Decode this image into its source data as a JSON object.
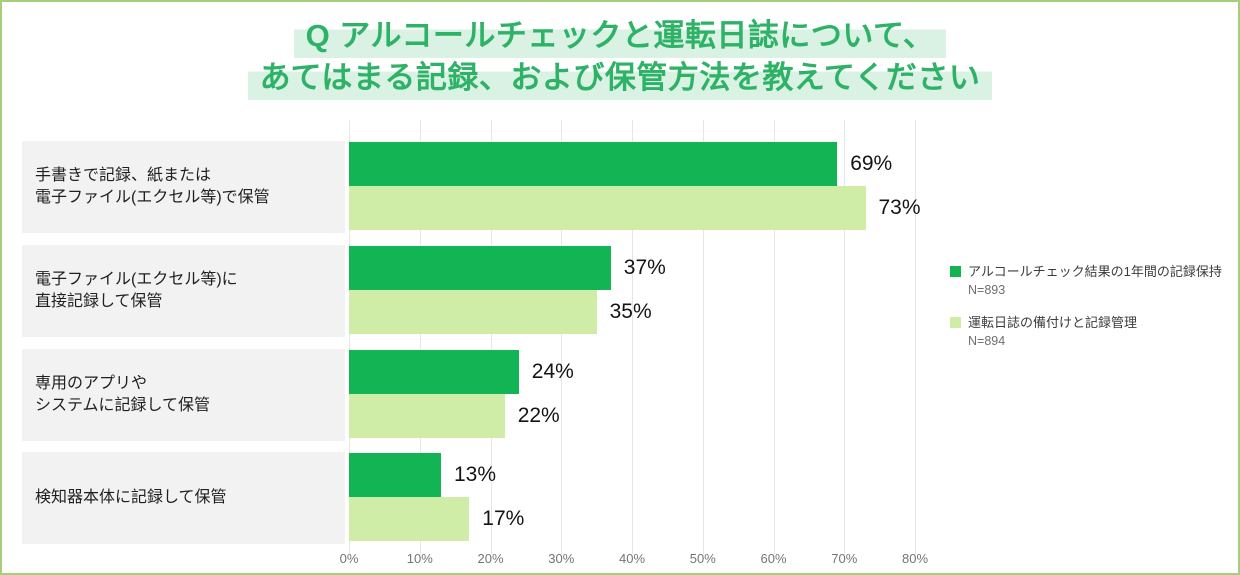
{
  "title": {
    "line1": "Q アルコールチェックと運転日誌について、",
    "line2": "あてはまる記録、および保管方法を教えてください"
  },
  "chart_data": {
    "type": "bar",
    "orientation": "horizontal",
    "categories": [
      [
        "手書きで記録、紙または",
        "電子ファイル(エクセル等)で保管"
      ],
      [
        "電子ファイル(エクセル等)に",
        "直接記録して保管"
      ],
      [
        "専用のアプリや",
        "システムに記録して保管"
      ],
      [
        "検知器本体に記録して保管"
      ]
    ],
    "series": [
      {
        "name": "アルコールチェック結果の1年間の記録保持",
        "n_label": "N=893",
        "color": "#13b453",
        "values": [
          69,
          37,
          24,
          13
        ]
      },
      {
        "name": "運転日誌の備付けと記録管理",
        "n_label": "N=894",
        "color": "#cfeda6",
        "values": [
          73,
          35,
          22,
          17
        ]
      }
    ],
    "value_suffix": "%",
    "xlim": [
      0,
      80
    ],
    "xticks": [
      "0%",
      "10%",
      "20%",
      "30%",
      "40%",
      "50%",
      "60%",
      "70%",
      "80%"
    ],
    "xtick_values": [
      0,
      10,
      20,
      30,
      40,
      50,
      60,
      70,
      80
    ],
    "grid": true,
    "legend_position": "right"
  },
  "colors": {
    "page_border": "#a6cf7c",
    "title_text": "#2db266",
    "title_highlight": "#d9f2e4",
    "bar_dark": "#13b453",
    "bar_light": "#cfeda6",
    "label_box_bg": "#f2f2f2",
    "gridline": "#e6e6e6",
    "axis_text": "#757575"
  }
}
